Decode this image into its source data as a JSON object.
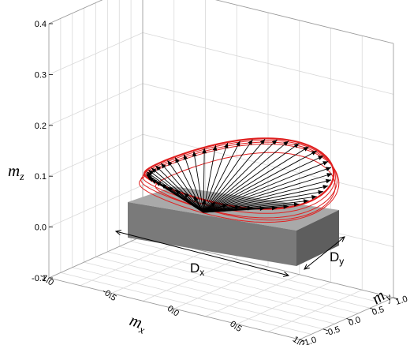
{
  "chart_data": {
    "type": "line",
    "axes": {
      "x": {
        "label": "m",
        "subscript": "x",
        "range": [
          -1.0,
          1.0
        ],
        "ticks": [
          "-1.0",
          "-0.5",
          "0.0",
          "0.5",
          "1.0"
        ]
      },
      "y": {
        "label": "m",
        "subscript": "y",
        "range": [
          -1.0,
          1.0
        ],
        "ticks": [
          "-1.0",
          "-0.5",
          "0.0",
          "0.5",
          "1.0"
        ]
      },
      "z": {
        "label": "m",
        "subscript": "z",
        "range": [
          -0.1,
          0.4
        ],
        "ticks": [
          "-0.1",
          "0.0",
          "0.1",
          "0.2",
          "0.3",
          "0.4"
        ]
      }
    },
    "grid": true,
    "loop_color": "#e02020",
    "arrow_color": "#000000",
    "arrow_count": 48,
    "loop_curves": 4,
    "block": {
      "top_color": "#a9a9a9",
      "front_color": "#7a7a7a",
      "side_color": "#5e5e5e"
    },
    "dimensions": [
      {
        "label": "D",
        "subscript": "x"
      },
      {
        "label": "D",
        "subscript": "y"
      }
    ]
  }
}
